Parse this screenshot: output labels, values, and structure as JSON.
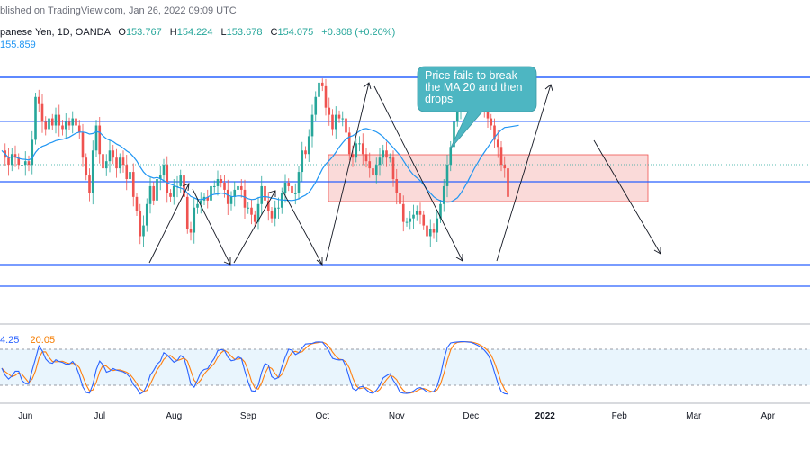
{
  "header": {
    "published": "blished on TradingView.com, Jan 26, 2022 09:09 UTC",
    "symbol": "panese Yen, 1D, OANDA",
    "open_label": "O",
    "open": "153.767",
    "high_label": "H",
    "high": "154.224",
    "low_label": "L",
    "low": "153.678",
    "close_label": "C",
    "close": "154.075",
    "change": "+0.308 (+0.20%)",
    "ma_value": "155.859",
    "stoch_k": "4.25",
    "stoch_d": "20.05"
  },
  "annotation": {
    "text": "Price fails to break the MA 20 and then drops"
  },
  "colors": {
    "up": "#26a69a",
    "down": "#ef5350",
    "ma": "#2196f3",
    "level_line": "#2962ff",
    "zone_fill": "#f8cecc",
    "zone_border": "#ef5350",
    "callout": "#4db6c2",
    "stoch_k": "#2962ff",
    "stoch_d": "#ff7f0e",
    "stoch_band": "#e3f2fd"
  },
  "chart_data": {
    "type": "candlestick",
    "interval": "1D",
    "x_tick_labels": [
      "Jun",
      "Jul",
      "Aug",
      "Sep",
      "Oct",
      "Nov",
      "Dec",
      "2022",
      "Feb",
      "Mar",
      "Apr"
    ],
    "x_tick_bold": [
      "2022"
    ],
    "x_tick_index": [
      7,
      29,
      51,
      73,
      95,
      117,
      139,
      161,
      183,
      205,
      227
    ],
    "y_range": [
      151.5,
      157.6
    ],
    "last_index": 180,
    "closes": [
      155.4,
      155.2,
      155.0,
      155.3,
      155.2,
      155.0,
      155.0,
      155.1,
      155.0,
      155.7,
      156.9,
      156.7,
      156.2,
      156.0,
      156.3,
      156.1,
      156.4,
      156.1,
      156.0,
      156.2,
      156.1,
      156.3,
      156.1,
      155.9,
      155.2,
      154.7,
      154.2,
      155.4,
      156.1,
      155.3,
      154.9,
      155.1,
      155.4,
      155.2,
      154.9,
      155.2,
      155.0,
      154.6,
      154.8,
      154.1,
      153.7,
      153.0,
      153.3,
      153.9,
      154.4,
      154.0,
      154.6,
      154.7,
      155.0,
      154.2,
      154.1,
      154.4,
      154.4,
      154.7,
      154.1,
      153.2,
      153.1,
      153.8,
      153.9,
      154.0,
      154.1,
      154.0,
      154.4,
      154.4,
      154.6,
      154.5,
      154.3,
      153.9,
      154.1,
      154.3,
      154.4,
      154.3,
      153.8,
      153.8,
      153.6,
      153.4,
      153.9,
      154.4,
      154.0,
      153.7,
      153.5,
      153.8,
      153.8,
      154.2,
      154.5,
      154.4,
      154.2,
      154.2,
      154.8,
      155.4,
      155.3,
      155.8,
      156.4,
      156.9,
      157.3,
      157.2,
      156.6,
      156.4,
      156.0,
      156.4,
      156.3,
      156.3,
      155.9,
      155.3,
      155.2,
      155.6,
      155.6,
      155.3,
      155.1,
      154.9,
      154.7,
      155.0,
      155.2,
      155.4,
      155.2,
      155.2,
      154.6,
      154.2,
      153.9,
      153.4,
      153.4,
      153.5,
      153.6,
      153.7,
      153.6,
      153.3,
      153.0,
      153.2,
      153.1,
      153.5,
      153.9,
      154.4,
      155.0,
      155.5,
      156.2,
      156.5,
      157.1,
      157.3,
      157.2,
      157.2,
      157.0,
      156.8,
      156.8,
      156.5,
      156.3,
      156.1,
      155.7,
      155.5,
      155.0,
      154.9,
      154.1
    ]
  }
}
